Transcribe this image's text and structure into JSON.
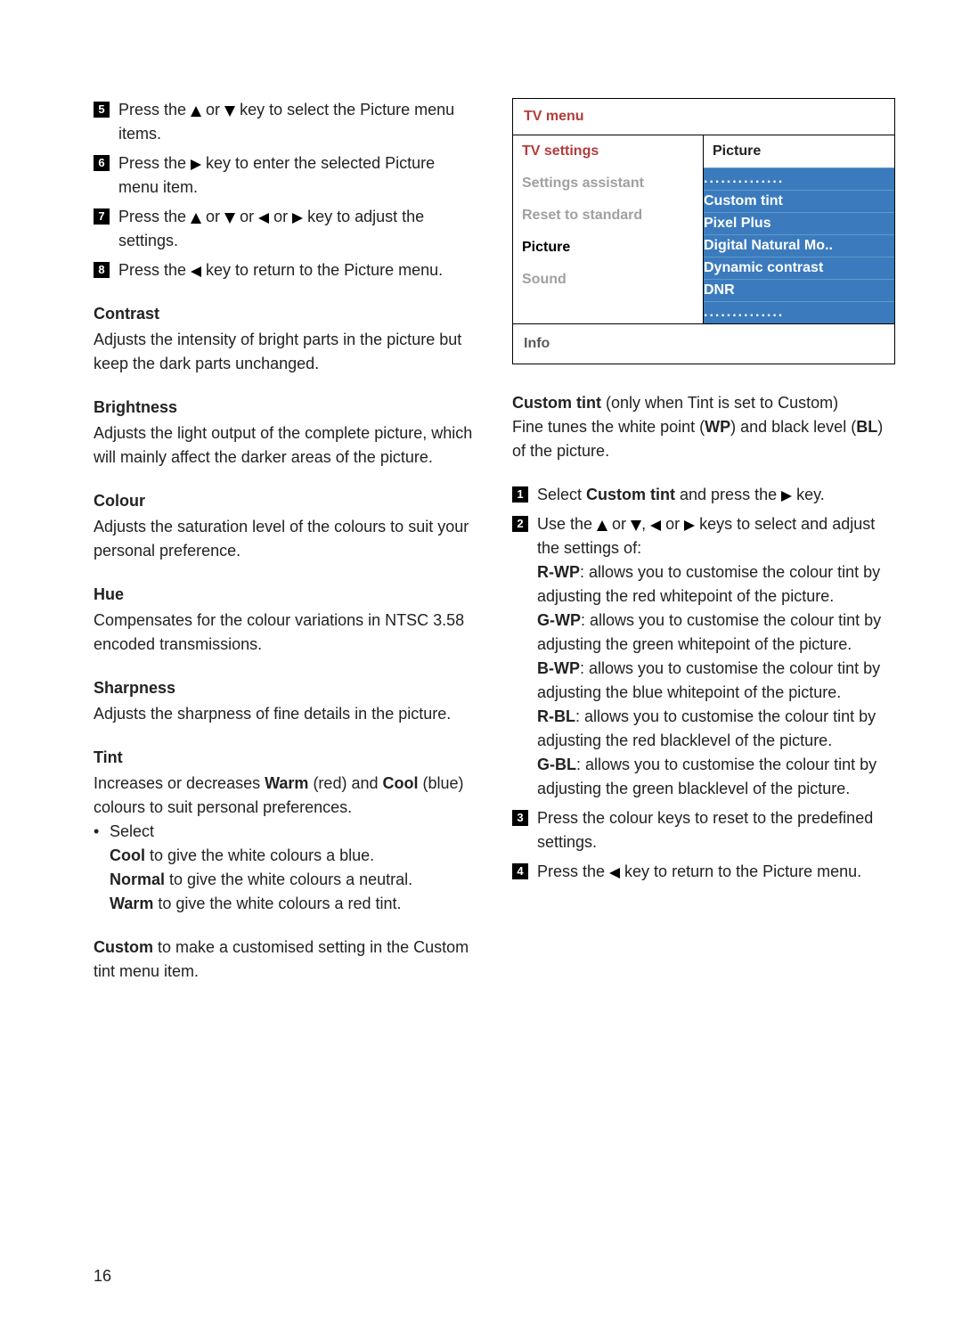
{
  "left": {
    "steps": [
      {
        "num": "5",
        "pre": "Press the ",
        "post": " key to select the Picture menu items.",
        "icons": [
          "up",
          "down"
        ],
        "sep": " or "
      },
      {
        "num": "6",
        "pre": "Press the ",
        "post": " key to enter the selected Picture menu item.",
        "icons": [
          "right"
        ],
        "sep": ""
      },
      {
        "num": "7",
        "pre": "Press the ",
        "post": " key to adjust the settings.",
        "icons": [
          "up",
          "down",
          "left",
          "right"
        ],
        "sep": " or "
      },
      {
        "num": "8",
        "pre": "Press the ",
        "post": " key to return to the Picture menu.",
        "icons": [
          "left"
        ],
        "sep": ""
      }
    ],
    "sections": {
      "contrast": {
        "title": "Contrast",
        "body": "Adjusts the intensity of bright parts in the picture but keep the dark parts unchanged."
      },
      "brightness": {
        "title": "Brightness",
        "body": "Adjusts the light output of the complete picture, which will mainly affect the darker areas of the picture."
      },
      "colour": {
        "title": "Colour",
        "body": "Adjusts the saturation level of the colours to suit your personal preference."
      },
      "hue": {
        "title": "Hue",
        "body": "Compensates for the colour variations in NTSC 3.58 encoded transmissions."
      },
      "sharpness": {
        "title": "Sharpness",
        "body": "Adjusts the sharpness of fine details in the picture."
      },
      "tint": {
        "title": "Tint",
        "intro_pre": "Increases or decreases ",
        "warm": "Warm",
        "intro_mid1": " (red) and ",
        "cool": "Cool",
        "intro_post": " (blue) colours to suit personal preferences.",
        "select_label": "Select",
        "cool_line_b": "Cool",
        "cool_line": " to give the white colours a blue.",
        "normal_line_b": "Normal",
        "normal_line": " to give the white colours a neutral.",
        "warm_line_b": "Warm",
        "warm_line": " to give the white colours a red tint."
      },
      "custom": {
        "b": "Custom",
        "rest": " to make a customised setting in the Custom tint menu item."
      }
    }
  },
  "tvmenu": {
    "title": "TV menu",
    "left_items": [
      {
        "label": "TV settings",
        "cls": "topred"
      },
      {
        "label": "Settings assistant",
        "cls": "muted"
      },
      {
        "label": "Reset to standard",
        "cls": "muted"
      },
      {
        "label": "Picture",
        "cls": "active"
      },
      {
        "label": "Sound",
        "cls": "muted"
      }
    ],
    "right_header": "Picture",
    "right_items": [
      "..............",
      "Custom tint",
      "Pixel Plus",
      "Digital Natural Mo..",
      "Dynamic contrast",
      "DNR",
      ".............."
    ],
    "info": "Info"
  },
  "right": {
    "custom_tint": {
      "heading_b": "Custom tint",
      "heading_rest": "  (only when Tint is set to Custom)",
      "intro1": "Fine tunes the white point (",
      "wp": "WP",
      "intro2": ") and black level (",
      "bl": "BL",
      "intro3": ") of the picture."
    },
    "steps": {
      "s1_pre": "Select ",
      "s1_b": "Custom tint",
      "s1_mid": " and press the ",
      "s1_post": " key.",
      "s2_pre": "Use the ",
      "s2_post": " keys to select and adjust the settings of:",
      "rwp_b": "R-WP",
      "rwp": ": allows you to customise the colour tint by adjusting the red whitepoint of the picture.",
      "gwp_b": "G-WP",
      "gwp": ": allows you to customise the colour tint by adjusting the green whitepoint of the picture.",
      "bwp_b": "B-WP",
      "bwp": ": allows you to customise the colour tint by adjusting the blue whitepoint of the picture.",
      "rbl_b": "R-BL",
      "rbl": ": allows you to customise the colour tint by adjusting the red blacklevel of the picture.",
      "gbl_b": "G-BL",
      "gbl": ": allows you to customise the colour tint by adjusting the green blacklevel of the picture.",
      "s3": "Press the colour keys to reset to the predefined settings.",
      "s4_pre": "Press the ",
      "s4_post": " key to return to the Picture menu."
    }
  },
  "pagenum": "16",
  "triangles": {
    "fill": "#000000",
    "size": 12
  }
}
